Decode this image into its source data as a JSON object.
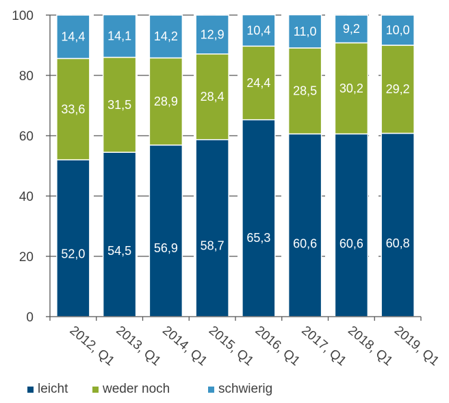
{
  "chart_data": {
    "type": "bar",
    "stacked": true,
    "title": "",
    "xlabel": "",
    "ylabel": "",
    "ylim": [
      0,
      100
    ],
    "yticks": [
      0,
      20,
      40,
      60,
      80,
      100
    ],
    "ytick_labels": [
      "0",
      "20",
      "40",
      "60",
      "80",
      "100"
    ],
    "grid": "dashed horizontal",
    "legend_position": "bottom",
    "categories": [
      "2012, Q1",
      "2013, Q1",
      "2014, Q1",
      "2015, Q1",
      "2016, Q1",
      "2017, Q1",
      "2018, Q1",
      "2019, Q1"
    ],
    "series": [
      {
        "name": "leicht",
        "color": "#004b7d",
        "values": [
          52.0,
          54.5,
          56.9,
          58.7,
          65.3,
          60.6,
          60.6,
          60.8
        ],
        "labels": [
          "52,0",
          "54,5",
          "56,9",
          "58,7",
          "65,3",
          "60,6",
          "60,6",
          "60,8"
        ]
      },
      {
        "name": "weder noch",
        "color": "#8fac2f",
        "values": [
          33.6,
          31.5,
          28.9,
          28.4,
          24.4,
          28.5,
          30.2,
          29.2
        ],
        "labels": [
          "33,6",
          "31,5",
          "28,9",
          "28,4",
          "24,4",
          "28,5",
          "30,2",
          "29,2"
        ]
      },
      {
        "name": "schwierig",
        "color": "#3c94c4",
        "values": [
          14.4,
          14.1,
          14.2,
          12.9,
          10.4,
          11.0,
          9.2,
          10.0
        ],
        "labels": [
          "14,4",
          "14,1",
          "14,2",
          "12,9",
          "10,4",
          "11,0",
          "9,2",
          "10,0"
        ]
      }
    ]
  }
}
